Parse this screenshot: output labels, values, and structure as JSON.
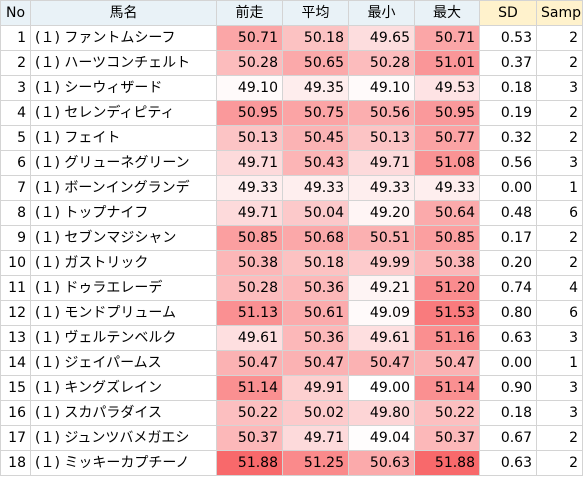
{
  "table": {
    "headers": [
      "No",
      "馬名",
      "前走",
      "平均",
      "最小",
      "最大",
      "SD",
      "Sample"
    ],
    "rows": [
      {
        "no": "1",
        "name": "(１) ファントムシーフ",
        "zenso": "50.71",
        "heikin": "50.18",
        "saisho": "49.65",
        "saidai": "50.71",
        "sd": "0.53",
        "sample": "2"
      },
      {
        "no": "2",
        "name": "(１) ハーツコンチェルト",
        "zenso": "50.28",
        "heikin": "50.65",
        "saisho": "50.28",
        "saidai": "51.01",
        "sd": "0.37",
        "sample": "2"
      },
      {
        "no": "3",
        "name": "(１) シーウィザード",
        "zenso": "49.10",
        "heikin": "49.35",
        "saisho": "49.10",
        "saidai": "49.53",
        "sd": "0.18",
        "sample": "3"
      },
      {
        "no": "4",
        "name": "(１) セレンディピティ",
        "zenso": "50.95",
        "heikin": "50.75",
        "saisho": "50.56",
        "saidai": "50.95",
        "sd": "0.19",
        "sample": "2"
      },
      {
        "no": "5",
        "name": "(１) フェイト",
        "zenso": "50.13",
        "heikin": "50.45",
        "saisho": "50.13",
        "saidai": "50.77",
        "sd": "0.32",
        "sample": "2"
      },
      {
        "no": "6",
        "name": "(１) グリューネグリーン",
        "zenso": "49.71",
        "heikin": "50.43",
        "saisho": "49.71",
        "saidai": "51.08",
        "sd": "0.56",
        "sample": "3"
      },
      {
        "no": "7",
        "name": "(１) ボーンイングランデ",
        "zenso": "49.33",
        "heikin": "49.33",
        "saisho": "49.33",
        "saidai": "49.33",
        "sd": "0.00",
        "sample": "1"
      },
      {
        "no": "8",
        "name": "(１) トップナイフ",
        "zenso": "49.71",
        "heikin": "50.04",
        "saisho": "49.20",
        "saidai": "50.64",
        "sd": "0.48",
        "sample": "6"
      },
      {
        "no": "9",
        "name": "(１) セブンマジシャン",
        "zenso": "50.85",
        "heikin": "50.68",
        "saisho": "50.51",
        "saidai": "50.85",
        "sd": "0.17",
        "sample": "2"
      },
      {
        "no": "10",
        "name": "(１) ガストリック",
        "zenso": "50.38",
        "heikin": "50.18",
        "saisho": "49.99",
        "saidai": "50.38",
        "sd": "0.20",
        "sample": "2"
      },
      {
        "no": "11",
        "name": "(１) ドゥラエレーデ",
        "zenso": "50.28",
        "heikin": "50.36",
        "saisho": "49.21",
        "saidai": "51.20",
        "sd": "0.74",
        "sample": "4"
      },
      {
        "no": "12",
        "name": "(１) モンドプリューム",
        "zenso": "51.13",
        "heikin": "50.61",
        "saisho": "49.09",
        "saidai": "51.53",
        "sd": "0.80",
        "sample": "6"
      },
      {
        "no": "13",
        "name": "(１) ヴェルテンベルク",
        "zenso": "49.61",
        "heikin": "50.36",
        "saisho": "49.61",
        "saidai": "51.16",
        "sd": "0.63",
        "sample": "3"
      },
      {
        "no": "14",
        "name": "(１) ジェイパームス",
        "zenso": "50.47",
        "heikin": "50.47",
        "saisho": "50.47",
        "saidai": "50.47",
        "sd": "0.00",
        "sample": "1"
      },
      {
        "no": "15",
        "name": "(１) キングズレイン",
        "zenso": "51.14",
        "heikin": "49.91",
        "saisho": "49.00",
        "saidai": "51.14",
        "sd": "0.90",
        "sample": "3"
      },
      {
        "no": "16",
        "name": "(１) スカパラダイス",
        "zenso": "50.22",
        "heikin": "50.02",
        "saisho": "49.80",
        "saidai": "50.22",
        "sd": "0.18",
        "sample": "3"
      },
      {
        "no": "17",
        "name": "(１) ジュンツバメガエシ",
        "zenso": "50.37",
        "heikin": "49.71",
        "saisho": "49.04",
        "saidai": "50.37",
        "sd": "0.67",
        "sample": "2"
      },
      {
        "no": "18",
        "name": "(１) ミッキーカプチーノ",
        "zenso": "51.88",
        "heikin": "51.25",
        "saisho": "50.63",
        "saidai": "51.88",
        "sd": "0.63",
        "sample": "2"
      }
    ]
  },
  "colors": {
    "header_bg": "#e9f2f7",
    "header_bg_stats": "#fff2cc",
    "heat_low": "#ffffff",
    "heat_high": "#f8696b",
    "grid": "#d4d4d4"
  }
}
